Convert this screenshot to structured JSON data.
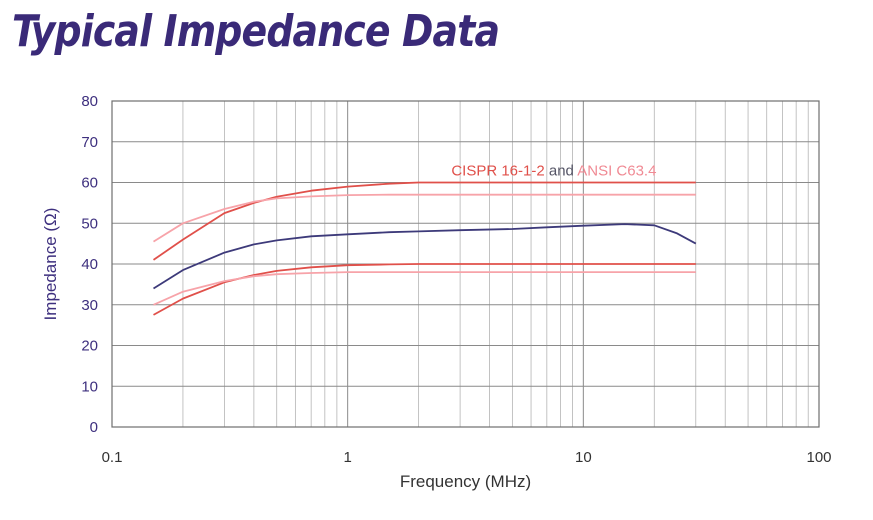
{
  "title": "Typical Impedance Data",
  "chart_data": {
    "type": "line",
    "xscale": "log",
    "xlim": [
      0.1,
      100
    ],
    "ylim": [
      0,
      80
    ],
    "xlabel": "Frequency (MHz)",
    "ylabel": "Impedance (Ω)",
    "grid": true,
    "x_ticks": [
      "0.1",
      "1",
      "10",
      "100"
    ],
    "y_ticks": [
      "0",
      "10",
      "20",
      "30",
      "40",
      "50",
      "60",
      "70",
      "80"
    ],
    "annotation": {
      "parts": [
        {
          "text": "CISPR 16-1-2",
          "color": "#e0504a"
        },
        {
          "text": " and ",
          "color": "#555566"
        },
        {
          "text": "ANSI C63.4",
          "color": "#f08a94"
        }
      ],
      "x": 7.5,
      "y": 63
    },
    "series": [
      {
        "color": "#e0504a",
        "x": [
          0.15,
          0.2,
          0.3,
          0.4,
          0.5,
          0.7,
          1,
          1.5,
          2,
          3,
          5,
          10,
          20,
          30
        ],
        "y": [
          41,
          46,
          52.5,
          55,
          56.5,
          58,
          59,
          59.7,
          60,
          60,
          60,
          60,
          60,
          60
        ]
      },
      {
        "color": "#f7a3a9",
        "x": [
          0.15,
          0.2,
          0.3,
          0.4,
          0.5,
          0.7,
          1,
          1.5,
          2,
          3,
          5,
          10,
          20,
          30
        ],
        "y": [
          45.5,
          50,
          53.5,
          55.3,
          56.1,
          56.6,
          56.9,
          57,
          57,
          57,
          57,
          57,
          57,
          57
        ]
      },
      {
        "color": "#3d3a7a",
        "x": [
          0.15,
          0.2,
          0.3,
          0.4,
          0.5,
          0.7,
          1,
          1.5,
          2,
          3,
          5,
          7,
          10,
          15,
          20,
          25,
          30
        ],
        "y": [
          34,
          38.5,
          42.8,
          44.8,
          45.8,
          46.8,
          47.3,
          47.8,
          48,
          48.3,
          48.6,
          49,
          49.4,
          49.8,
          49.5,
          47.5,
          45
        ]
      },
      {
        "color": "#e0504a",
        "x": [
          0.15,
          0.2,
          0.3,
          0.4,
          0.5,
          0.7,
          1,
          1.5,
          2,
          3,
          5,
          10,
          20,
          30
        ],
        "y": [
          27.5,
          31.5,
          35.5,
          37.3,
          38.3,
          39.2,
          39.7,
          39.9,
          40,
          40,
          40,
          40,
          40,
          40
        ]
      },
      {
        "color": "#f7a3a9",
        "x": [
          0.15,
          0.2,
          0.3,
          0.4,
          0.5,
          0.7,
          1,
          1.5,
          2,
          3,
          5,
          10,
          20,
          30
        ],
        "y": [
          30,
          33.2,
          35.8,
          37,
          37.5,
          37.8,
          38,
          38,
          38,
          38,
          38,
          38,
          38,
          38
        ]
      }
    ]
  }
}
